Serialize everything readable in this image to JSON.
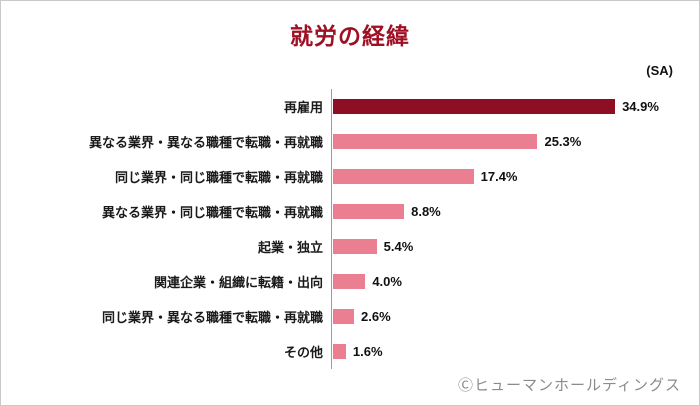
{
  "title": "就労の経緯",
  "sa_label": "(SA)",
  "footer": "Ⓒヒューマンホールディングス",
  "colors": {
    "title": "#9e1023",
    "highlight_bar": "#8e0e24",
    "bar": "#e97f90",
    "axis": "#9d9d9d"
  },
  "chart_data": {
    "type": "bar",
    "orientation": "horizontal",
    "title": "就労の経緯",
    "annotation": "(SA)",
    "categories": [
      "再雇用",
      "異なる業界・異なる職種で転職・再就職",
      "同じ業界・同じ職種で転職・再就職",
      "異なる業界・同じ職種で転職・再就職",
      "起業・独立",
      "関連企業・組織に転籍・出向",
      "同じ業界・異なる職種で転職・再就職",
      "その他"
    ],
    "values": [
      34.9,
      25.3,
      17.4,
      8.8,
      5.4,
      4.0,
      2.6,
      1.6
    ],
    "value_labels": [
      "34.9%",
      "25.3%",
      "17.4%",
      "8.8%",
      "5.4%",
      "4.0%",
      "2.6%",
      "1.6%"
    ],
    "xlim": [
      0,
      36.5
    ],
    "highlight_index": 0,
    "grid": false,
    "legend": false
  }
}
